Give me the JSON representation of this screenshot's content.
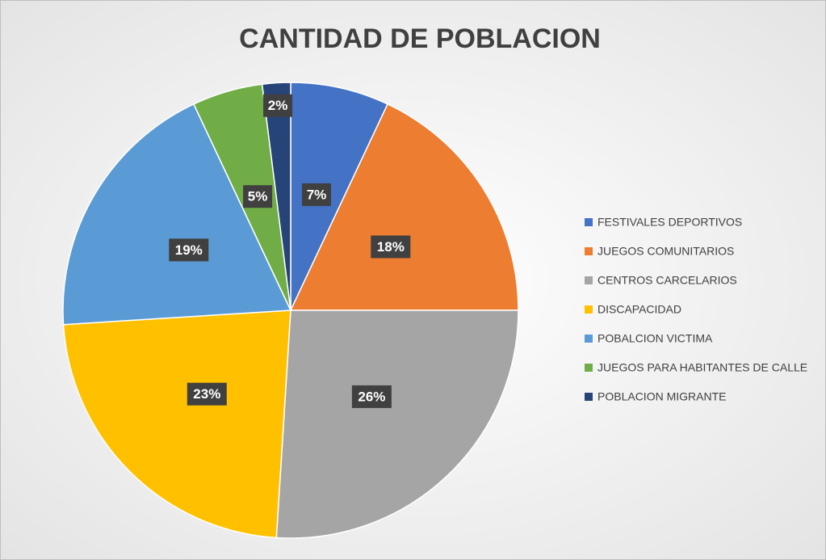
{
  "chart_data": {
    "type": "pie",
    "title": "CANTIDAD DE POBLACION",
    "categories": [
      "FESTIVALES DEPORTIVOS",
      "JUEGOS COMUNITARIOS",
      "CENTROS CARCELARIOS",
      "DISCAPACIDAD",
      "POBALCION VICTIMA",
      "JUEGOS PARA HABITANTES DE CALLE",
      "POBLACION MIGRANTE"
    ],
    "values": [
      7,
      18,
      26,
      23,
      19,
      5,
      2
    ],
    "value_labels": [
      "7%",
      "18%",
      "26%",
      "23%",
      "19%",
      "5%",
      "2%"
    ],
    "colors": [
      "#4472c4",
      "#ed7d31",
      "#a5a5a5",
      "#ffc000",
      "#5b9bd5",
      "#70ad47",
      "#264478"
    ],
    "legend": "right"
  }
}
